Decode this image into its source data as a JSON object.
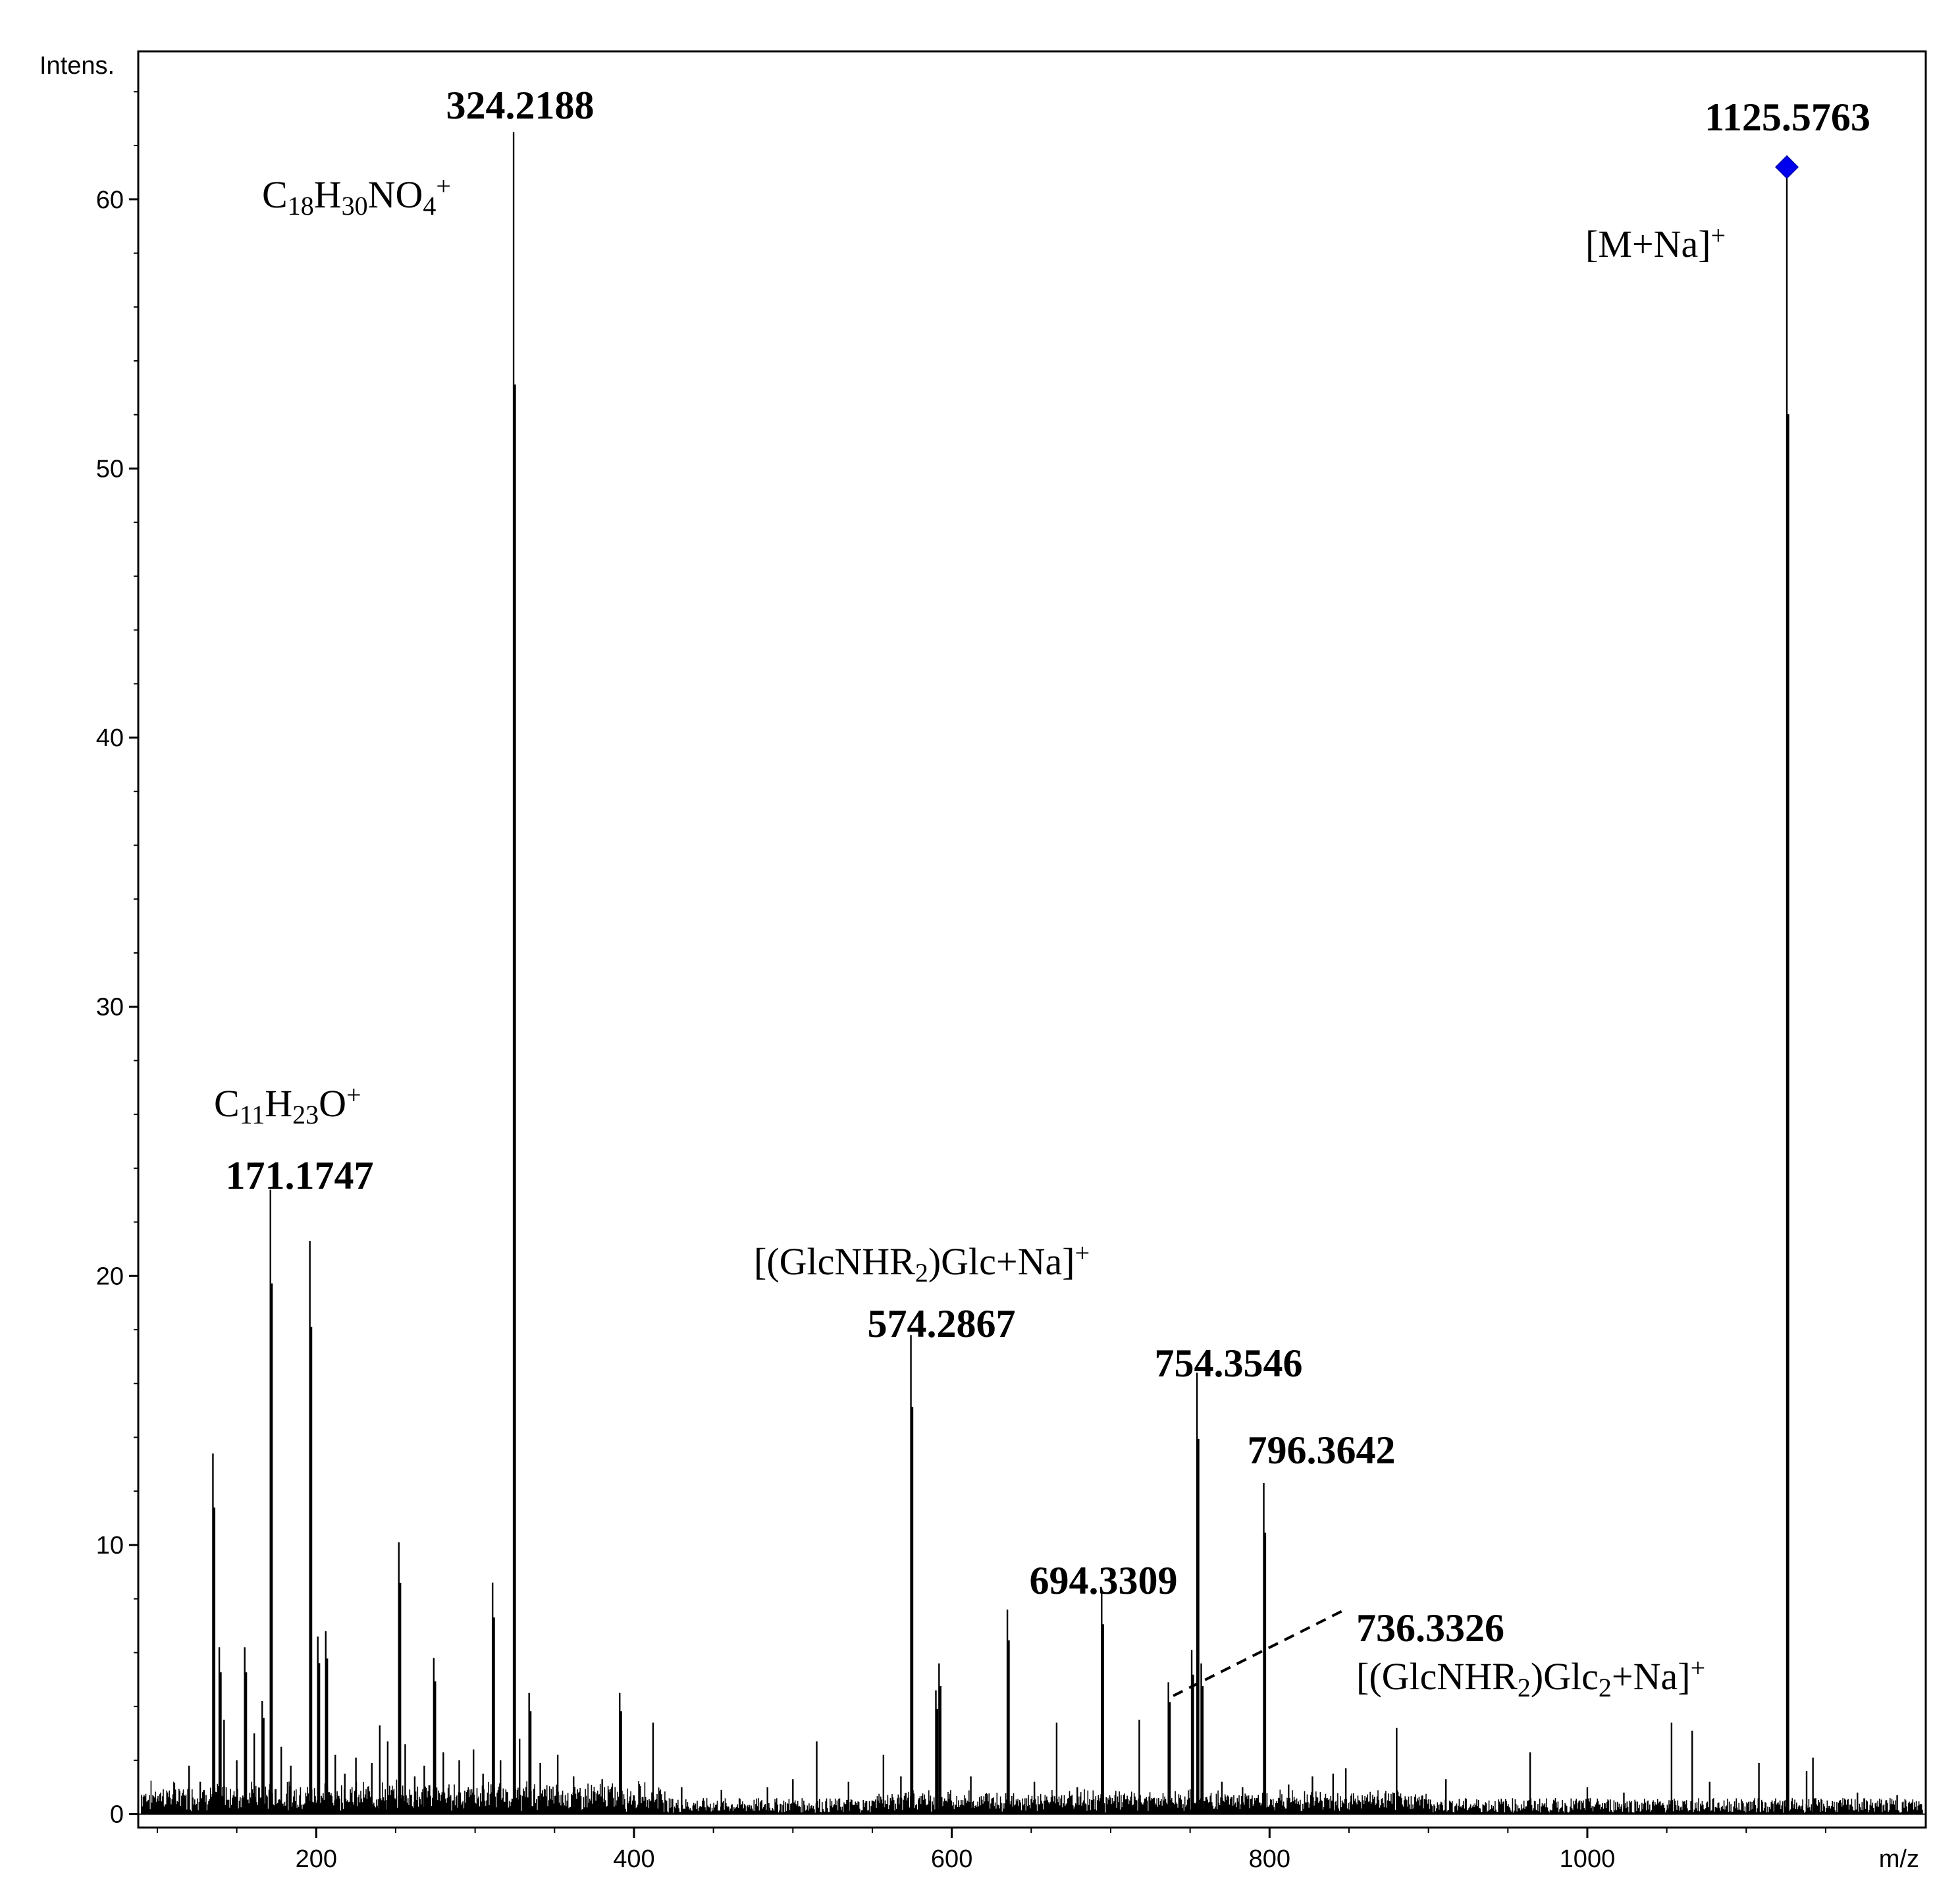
{
  "chart_data": {
    "type": "mass-spectrum",
    "xlabel": "m/z",
    "ylabel": "Intens.",
    "xlim": [
      88,
      1213
    ],
    "ylim": [
      -0.5,
      65.5
    ],
    "xticks": [
      "200",
      "400",
      "600",
      "800",
      "1000"
    ],
    "yticks": [
      "0",
      "10",
      "20",
      "30",
      "40",
      "50",
      "60"
    ],
    "precursor_marker": {
      "mz": 1125.5763,
      "intensity": 61.2,
      "color": "#0000ee",
      "shape": "diamond"
    },
    "labeled_peaks": [
      {
        "mz": 171.1747,
        "intensity": 23.2,
        "mz_label": "171.1747",
        "ion": {
          "main": "C",
          "sub1": "11",
          "mid": "H",
          "sub2": "23",
          "end": "O",
          "sup": "+"
        }
      },
      {
        "mz": 324.2188,
        "intensity": 62.5,
        "mz_label": "324.2188",
        "ion": {
          "main": "C",
          "sub1": "18",
          "mid": "H",
          "sub2": "30",
          "end": "NO",
          "sub3": "4",
          "sup": "+"
        }
      },
      {
        "mz": 574.2867,
        "intensity": 17.8,
        "mz_label": "574.2867",
        "ion": {
          "pre": "[(GlcNHR",
          "sub": "2",
          "post": ")Glc+Na]",
          "sup": "+"
        }
      },
      {
        "mz": 694.3309,
        "intensity": 8.3,
        "mz_label": "694.3309"
      },
      {
        "mz": 736.3326,
        "intensity": 4.9,
        "mz_label": "736.3326",
        "ion": {
          "pre": "[(GlcNHR",
          "sub": "2",
          "mid": ")Glc",
          "sub2": "2",
          "post": "+Na]",
          "sup": "+"
        }
      },
      {
        "mz": 754.3546,
        "intensity": 16.4,
        "mz_label": "754.3546"
      },
      {
        "mz": 796.3642,
        "intensity": 12.3,
        "mz_label": "796.3642"
      },
      {
        "mz": 1125.5763,
        "intensity": 61.2,
        "mz_label": "1125.5763",
        "ion": {
          "pre": "[M+Na]",
          "sup": "+"
        }
      }
    ],
    "peaks": [
      [
        120,
        1.8
      ],
      [
        127,
        1.2
      ],
      [
        135,
        13.4
      ],
      [
        139,
        6.2
      ],
      [
        142,
        3.5
      ],
      [
        150,
        2.0
      ],
      [
        155,
        6.2
      ],
      [
        161,
        3.0
      ],
      [
        166,
        4.2
      ],
      [
        171.1747,
        23.2
      ],
      [
        178,
        2.5
      ],
      [
        184,
        1.8
      ],
      [
        196,
        21.3
      ],
      [
        201,
        6.6
      ],
      [
        206,
        6.8
      ],
      [
        212,
        2.2
      ],
      [
        218,
        1.5
      ],
      [
        225,
        2.1
      ],
      [
        235,
        1.9
      ],
      [
        240,
        3.3
      ],
      [
        245,
        2.7
      ],
      [
        252,
        10.1
      ],
      [
        256,
        2.6
      ],
      [
        262,
        1.4
      ],
      [
        268,
        1.8
      ],
      [
        274,
        5.8
      ],
      [
        280,
        2.3
      ],
      [
        290,
        2.0
      ],
      [
        299,
        2.4
      ],
      [
        305,
        1.5
      ],
      [
        311,
        8.6
      ],
      [
        316,
        2.0
      ],
      [
        324.2188,
        62.5
      ],
      [
        328,
        2.8
      ],
      [
        334,
        4.5
      ],
      [
        341,
        1.9
      ],
      [
        352,
        2.2
      ],
      [
        362,
        1.4
      ],
      [
        380,
        1.3
      ],
      [
        391,
        4.5
      ],
      [
        412,
        3.4
      ],
      [
        430,
        1.0
      ],
      [
        455,
        0.9
      ],
      [
        484,
        1.0
      ],
      [
        500,
        1.3
      ],
      [
        515,
        2.7
      ],
      [
        535,
        1.2
      ],
      [
        557,
        2.2
      ],
      [
        568,
        1.4
      ],
      [
        574.2867,
        17.8
      ],
      [
        590,
        4.6
      ],
      [
        592,
        5.6
      ],
      [
        612,
        1.4
      ],
      [
        635,
        7.6
      ],
      [
        652,
        1.2
      ],
      [
        666,
        3.4
      ],
      [
        679,
        1.0
      ],
      [
        694.3309,
        8.3
      ],
      [
        718,
        3.5
      ],
      [
        736.3326,
        4.9
      ],
      [
        751,
        6.1
      ],
      [
        754.3546,
        16.4
      ],
      [
        757,
        5.6
      ],
      [
        770,
        1.2
      ],
      [
        783,
        1.0
      ],
      [
        796.3642,
        12.3
      ],
      [
        812,
        1.1
      ],
      [
        827,
        1.4
      ],
      [
        840,
        1.5
      ],
      [
        848,
        1.7
      ],
      [
        880,
        3.2
      ],
      [
        911,
        1.3
      ],
      [
        964,
        2.3
      ],
      [
        1000,
        1.0
      ],
      [
        1023,
        0.8
      ],
      [
        1053,
        3.4
      ],
      [
        1066,
        3.1
      ],
      [
        1077,
        1.2
      ],
      [
        1108,
        1.9
      ],
      [
        1125.5763,
        61.2
      ],
      [
        1138,
        1.6
      ],
      [
        1142,
        2.1
      ],
      [
        1170,
        0.8
      ],
      [
        1195,
        0.7
      ]
    ]
  }
}
